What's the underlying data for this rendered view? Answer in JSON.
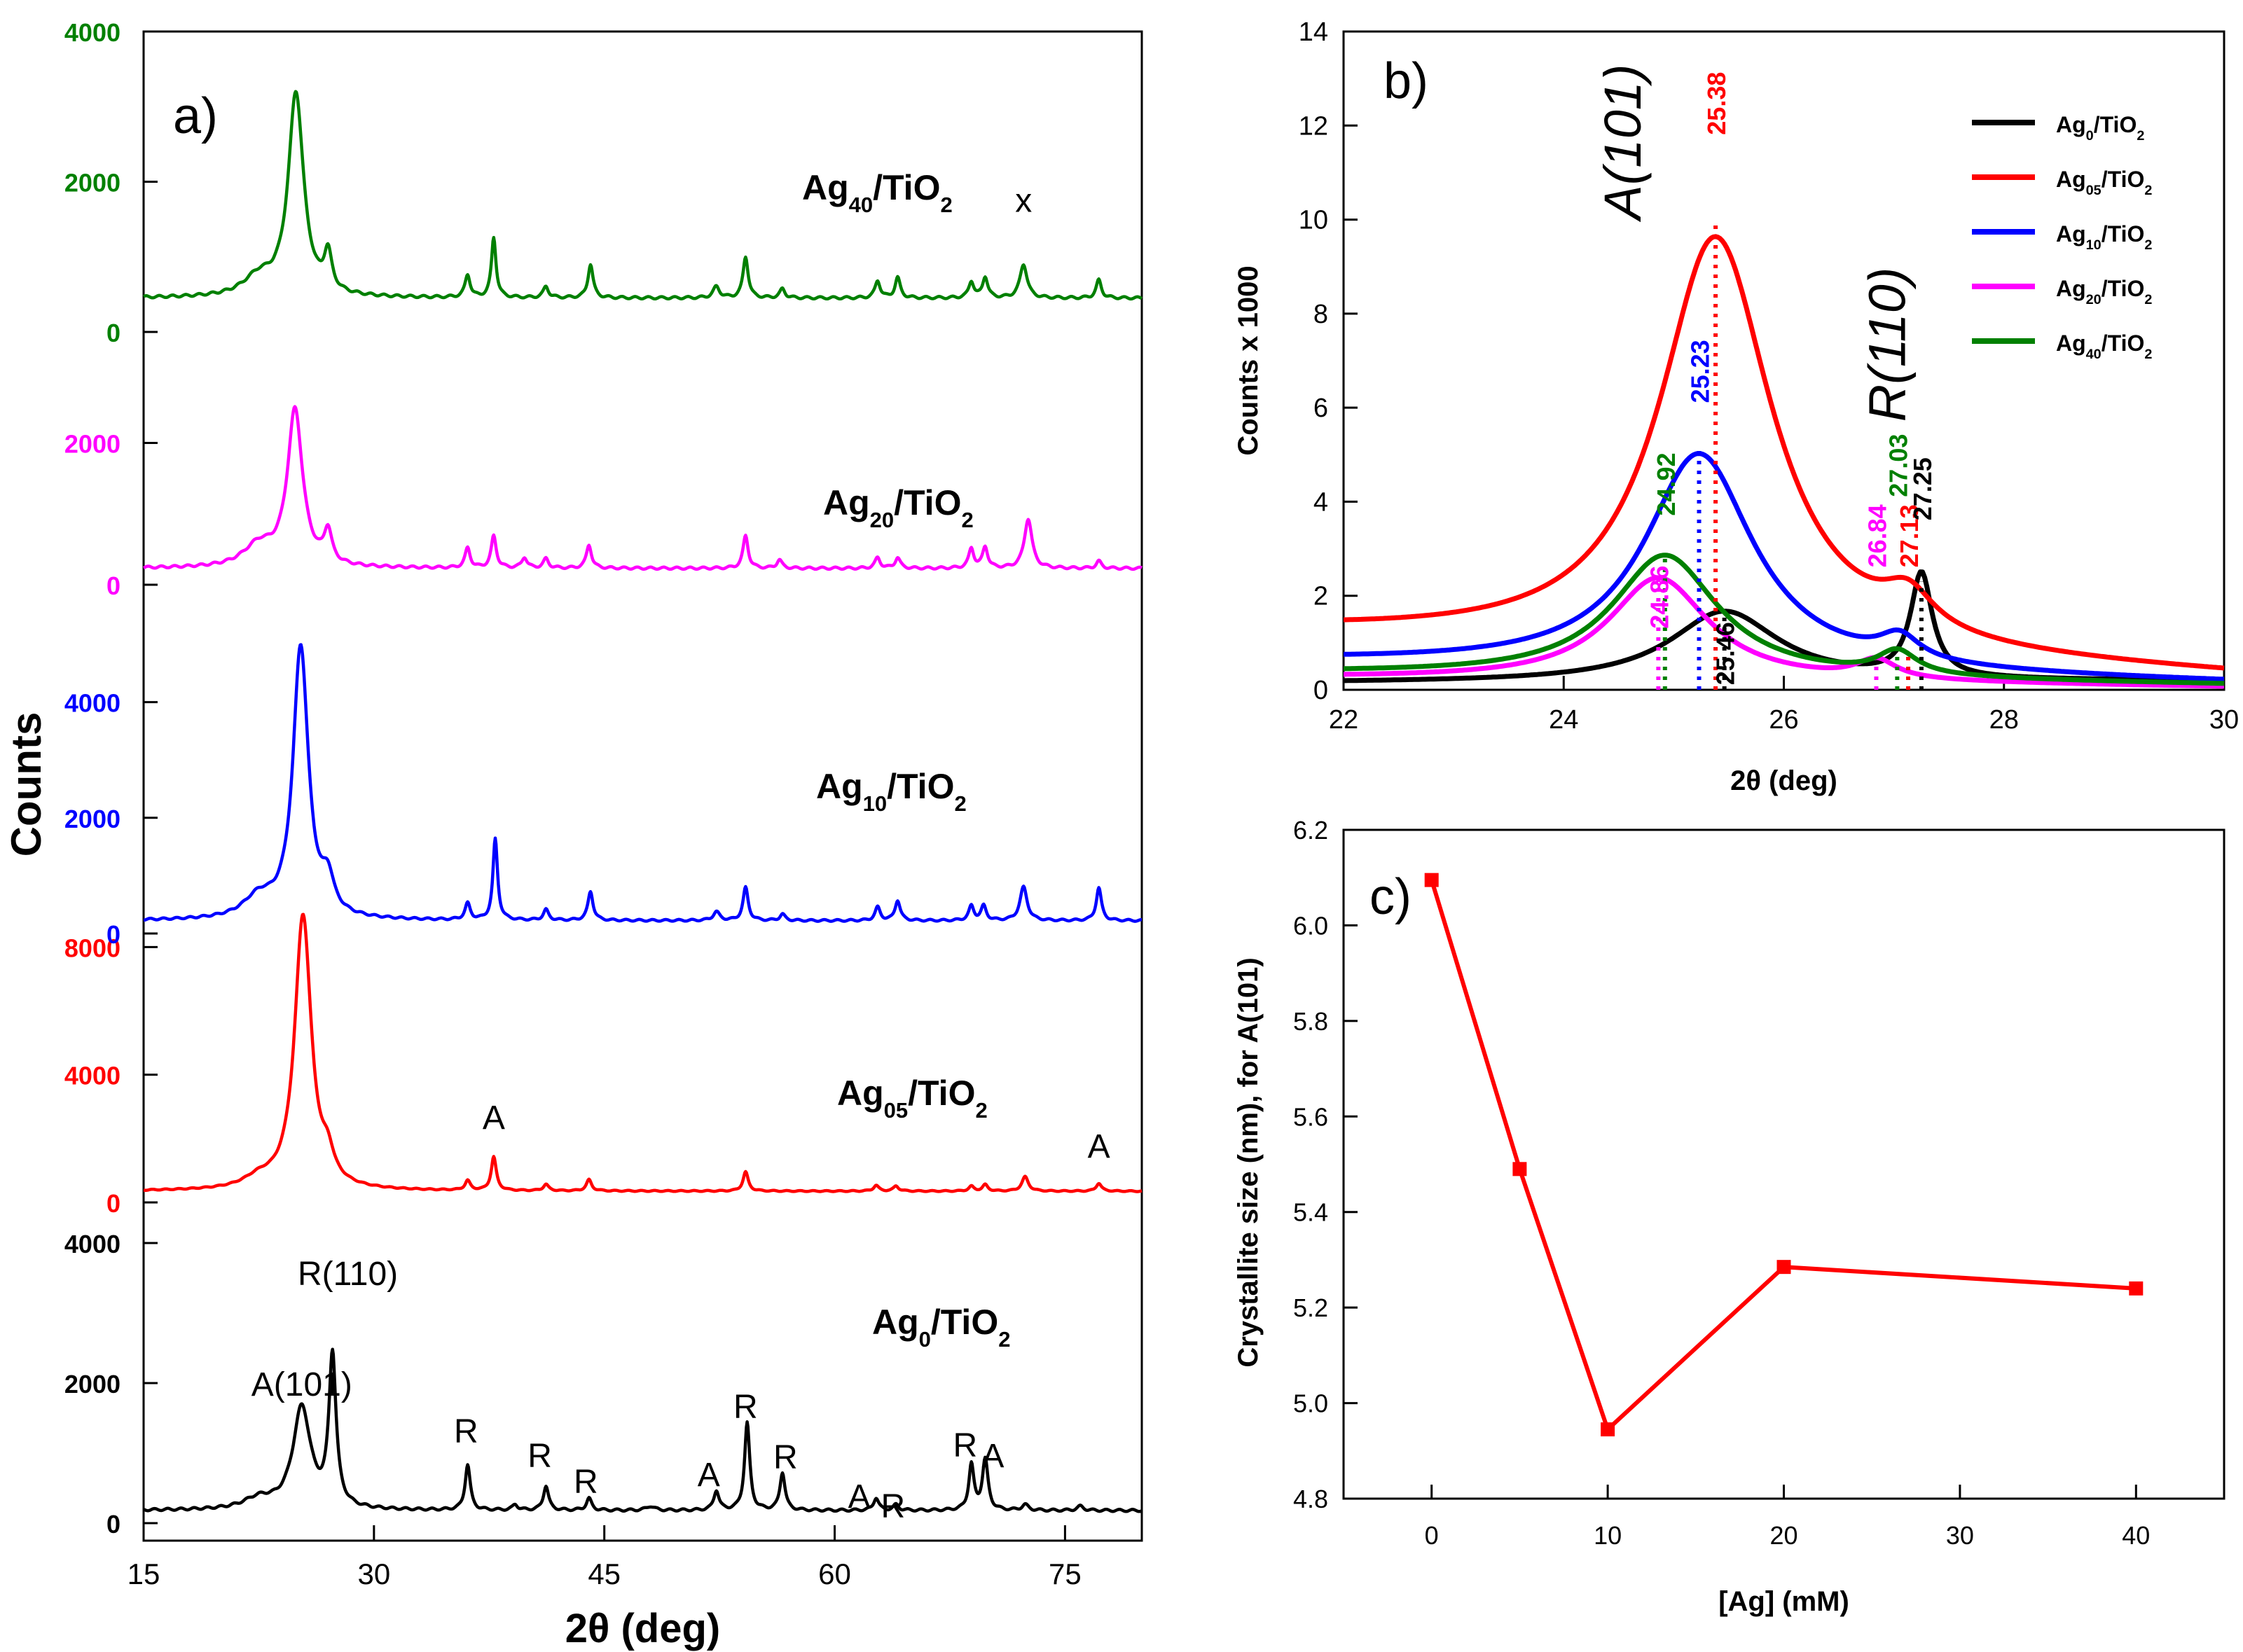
{
  "chart_data": [
    {
      "id": "a",
      "type": "line",
      "panel_label": "a)",
      "xlabel": "2θ (deg)",
      "ylabel": "Counts",
      "xlim": [
        15,
        80
      ],
      "xticks": [
        15,
        30,
        45,
        60,
        75
      ],
      "series": [
        {
          "name": "Ag0/TiO2",
          "label_main": "Ag",
          "label_sub": "0",
          "label_tail": "/TiO",
          "label_sub2": "2",
          "color": "#000000",
          "ylim": [
            0,
            4200
          ],
          "yticks": [
            0,
            2000,
            4000
          ],
          "ytick_labels": [
            "0",
            "2000",
            "4000"
          ],
          "baseline": 180,
          "peaks": [
            [
              22.5,
              150,
              1.2
            ],
            [
              25.3,
              1450,
              0.7
            ],
            [
              27.3,
              2150,
              0.28
            ],
            [
              36.1,
              650,
              0.2
            ],
            [
              39.2,
              80,
              0.2
            ],
            [
              41.2,
              350,
              0.2
            ],
            [
              44.0,
              170,
              0.2
            ],
            [
              48.0,
              60,
              0.3
            ],
            [
              52.3,
              280,
              0.2
            ],
            [
              54.3,
              1250,
              0.2
            ],
            [
              56.6,
              540,
              0.2
            ],
            [
              62.7,
              180,
              0.2
            ],
            [
              64.0,
              80,
              0.2
            ],
            [
              68.9,
              650,
              0.2
            ],
            [
              69.8,
              720,
              0.22
            ],
            [
              72.4,
              80,
              0.25
            ],
            [
              76.0,
              60,
              0.25
            ]
          ],
          "annotations": [
            {
              "text": "A(101)",
              "x": 25.3,
              "y": 1820
            },
            {
              "text": "R(110)",
              "x": 28.3,
              "y": 3400
            },
            {
              "text": "R",
              "x": 36.0,
              "y": 1150
            },
            {
              "text": "R",
              "x": 40.8,
              "y": 800
            },
            {
              "text": "R",
              "x": 43.8,
              "y": 430
            },
            {
              "text": "A",
              "x": 51.8,
              "y": 530
            },
            {
              "text": "R",
              "x": 54.2,
              "y": 1500
            },
            {
              "text": "R",
              "x": 56.8,
              "y": 780
            },
            {
              "text": "A",
              "x": 61.6,
              "y": 220
            },
            {
              "text": "R",
              "x": 63.8,
              "y": 80
            },
            {
              "text": "R",
              "x": 68.5,
              "y": 950
            },
            {
              "text": "A",
              "x": 70.3,
              "y": 800
            }
          ]
        },
        {
          "name": "Ag05/TiO2",
          "label_main": "Ag",
          "label_sub": "05",
          "label_tail": "/TiO",
          "label_sub2": "2",
          "color": "#ff0000",
          "ylim": [
            0,
            8600
          ],
          "yticks": [
            0,
            4000,
            8000
          ],
          "ytick_labels": [
            "0",
            "4000",
            "8000"
          ],
          "baseline": 350,
          "peaks": [
            [
              22.5,
              300,
              1.2
            ],
            [
              25.38,
              8600,
              0.65
            ],
            [
              27.0,
              700,
              0.45
            ],
            [
              36.1,
              300,
              0.2
            ],
            [
              37.8,
              1050,
              0.2
            ],
            [
              41.2,
              200,
              0.2
            ],
            [
              44.0,
              350,
              0.2
            ],
            [
              54.2,
              600,
              0.2
            ],
            [
              62.7,
              180,
              0.2
            ],
            [
              64.0,
              160,
              0.2
            ],
            [
              68.9,
              150,
              0.2
            ],
            [
              69.8,
              200,
              0.2
            ],
            [
              72.4,
              450,
              0.25
            ],
            [
              77.2,
              250,
              0.2
            ]
          ],
          "annotations": [
            {
              "text": "A",
              "x": 37.8,
              "y": 2300
            },
            {
              "text": "A",
              "x": 77.2,
              "y": 1400
            }
          ]
        },
        {
          "name": "Ag10/TiO2",
          "label_main": "Ag",
          "label_sub": "10",
          "label_tail": "/TiO",
          "label_sub2": "2",
          "color": "#0000ff",
          "ylim": [
            0,
            5000
          ],
          "yticks": [
            0,
            2000,
            4000
          ],
          "ytick_labels": [
            "0",
            "2000",
            "4000"
          ],
          "baseline": 220,
          "peaks": [
            [
              22.5,
              350,
              1.2
            ],
            [
              25.23,
              4700,
              0.6
            ],
            [
              27.0,
              550,
              0.45
            ],
            [
              36.1,
              280,
              0.2
            ],
            [
              37.9,
              1400,
              0.18
            ],
            [
              41.2,
              180,
              0.2
            ],
            [
              44.1,
              500,
              0.2
            ],
            [
              52.3,
              150,
              0.25
            ],
            [
              54.2,
              570,
              0.2
            ],
            [
              56.6,
              110,
              0.2
            ],
            [
              62.8,
              230,
              0.2
            ],
            [
              64.1,
              350,
              0.2
            ],
            [
              68.9,
              250,
              0.2
            ],
            [
              69.7,
              250,
              0.2
            ],
            [
              72.3,
              580,
              0.28
            ],
            [
              77.2,
              570,
              0.2
            ]
          ],
          "annotations": []
        },
        {
          "name": "Ag20/TiO2",
          "label_main": "Ag",
          "label_sub": "20",
          "label_tail": "/TiO",
          "label_sub2": "2",
          "color": "#ff00ff",
          "ylim": [
            0,
            4000
          ],
          "yticks": [
            0,
            2000
          ],
          "ytick_labels": [
            "0",
            "2000"
          ],
          "baseline": 230,
          "peaks": [
            [
              22.5,
              300,
              1.2
            ],
            [
              24.86,
              2200,
              0.6
            ],
            [
              27.0,
              450,
              0.3
            ],
            [
              36.1,
              280,
              0.2
            ],
            [
              37.8,
              450,
              0.2
            ],
            [
              39.8,
              150,
              0.2
            ],
            [
              41.2,
              130,
              0.2
            ],
            [
              44.0,
              330,
              0.2
            ],
            [
              54.2,
              460,
              0.2
            ],
            [
              56.4,
              120,
              0.2
            ],
            [
              62.8,
              150,
              0.2
            ],
            [
              64.1,
              150,
              0.2
            ],
            [
              68.9,
              280,
              0.2
            ],
            [
              69.8,
              300,
              0.2
            ],
            [
              72.6,
              700,
              0.3
            ],
            [
              77.2,
              100,
              0.2
            ]
          ],
          "annotations": []
        },
        {
          "name": "Ag40/TiO2",
          "label_main": "Ag",
          "label_sub": "40",
          "label_tail": "/TiO",
          "label_sub2": "2",
          "color": "#008000",
          "ylim": [
            0,
            4000
          ],
          "yticks": [
            0,
            2000,
            4000
          ],
          "ytick_labels": [
            "0",
            "2000",
            "4000"
          ],
          "baseline": 450,
          "peaks": [
            [
              22.5,
              250,
              1.2
            ],
            [
              24.92,
              2700,
              0.6
            ],
            [
              27.0,
              500,
              0.3
            ],
            [
              36.1,
              300,
              0.2
            ],
            [
              37.8,
              800,
              0.18
            ],
            [
              41.2,
              150,
              0.2
            ],
            [
              44.1,
              450,
              0.2
            ],
            [
              52.3,
              150,
              0.25
            ],
            [
              54.2,
              550,
              0.2
            ],
            [
              56.6,
              120,
              0.2
            ],
            [
              62.8,
              230,
              0.2
            ],
            [
              64.1,
              270,
              0.2
            ],
            [
              68.9,
              220,
              0.2
            ],
            [
              69.8,
              280,
              0.2
            ],
            [
              72.3,
              450,
              0.28
            ],
            [
              77.2,
              240,
              0.2
            ]
          ],
          "annotations": [
            {
              "text": "x",
              "x": 72.3,
              "y": 1600
            }
          ]
        }
      ]
    },
    {
      "id": "b",
      "type": "line",
      "panel_label": "b)",
      "xlabel": "2θ (deg)",
      "ylabel": "Counts x 1000",
      "xlim": [
        22,
        30
      ],
      "ylim": [
        0,
        14
      ],
      "xticks": [
        22,
        24,
        26,
        28,
        30
      ],
      "yticks": [
        0,
        2,
        4,
        6,
        8,
        10,
        12,
        14
      ],
      "legend_position": "top-right",
      "series": [
        {
          "name": "Ag0/TiO2",
          "label_main": "Ag",
          "label_sub": "0",
          "label_tail": "/TiO",
          "label_sub2": "2",
          "color": "#000000",
          "baseline": 0.15,
          "tail": 0.18,
          "peaks": [
            [
              25.46,
              1.5,
              0.6
            ],
            [
              27.25,
              2.2,
              0.12
            ]
          ]
        },
        {
          "name": "Ag05/TiO2",
          "label_main": "Ag",
          "label_sub": "05",
          "label_tail": "/TiO",
          "label_sub2": "2",
          "color": "#ff0000",
          "baseline": 1.2,
          "tail": 0.3,
          "peaks": [
            [
              25.38,
              8.8,
              0.62
            ],
            [
              27.13,
              0.75,
              0.28
            ]
          ]
        },
        {
          "name": "Ag10/TiO2",
          "label_main": "Ag",
          "label_sub": "10",
          "label_tail": "/TiO",
          "label_sub2": "2",
          "color": "#0000ff",
          "baseline": 0.6,
          "tail": 0.15,
          "peaks": [
            [
              25.23,
              4.6,
              0.6
            ],
            [
              27.05,
              0.5,
              0.22
            ]
          ]
        },
        {
          "name": "Ag20/TiO2",
          "label_main": "Ag",
          "label_sub": "20",
          "label_tail": "/TiO",
          "label_sub2": "2",
          "color": "#ff00ff",
          "baseline": 0.25,
          "tail": 0.05,
          "peaks": [
            [
              24.86,
              2.2,
              0.55
            ],
            [
              26.84,
              0.4,
              0.22
            ]
          ]
        },
        {
          "name": "Ag40/TiO2",
          "label_main": "Ag",
          "label_sub": "40",
          "label_tail": "/TiO",
          "label_sub2": "2",
          "color": "#008000",
          "baseline": 0.35,
          "tail": 0.1,
          "peaks": [
            [
              24.92,
              2.6,
              0.58
            ],
            [
              27.03,
              0.5,
              0.22
            ]
          ]
        }
      ],
      "markers": [
        {
          "x": 25.38,
          "top": 10.0,
          "label": "25.38",
          "color": "#ff0000",
          "label_y": 11.8
        },
        {
          "x": 25.23,
          "top": 5.1,
          "label": "25.23",
          "color": "#0000ff",
          "label_y": 6.1
        },
        {
          "x": 24.92,
          "top": 2.9,
          "label": "24.92",
          "color": "#008000",
          "label_y": 3.7
        },
        {
          "x": 24.86,
          "top": 2.4,
          "label": "24.86",
          "color": "#ff00ff",
          "label_y": 1.3
        },
        {
          "x": 25.46,
          "top": 1.6,
          "label": "25.46",
          "color": "#000000",
          "label_y": 0.1
        },
        {
          "x": 26.84,
          "top": 0.6,
          "label": "26.84",
          "color": "#ff00ff",
          "label_y": 2.6
        },
        {
          "x": 27.03,
          "top": 0.8,
          "label": "27.03",
          "color": "#008000",
          "label_y": 4.1
        },
        {
          "x": 27.13,
          "top": 0.8,
          "label": "27.13",
          "color": "#ff0000",
          "label_y": 2.6
        },
        {
          "x": 27.25,
          "top": 2.3,
          "label": "27.25",
          "color": "#000000",
          "label_y": 3.6
        }
      ],
      "annotations": [
        {
          "text": "A(101)",
          "x": 24.7,
          "y": 10.0
        },
        {
          "text": "R(110)",
          "x": 27.1,
          "y": 5.7
        }
      ]
    },
    {
      "id": "c",
      "type": "line",
      "panel_label": "c)",
      "xlabel": "[Ag] (mM)",
      "ylabel": "Crystallite size (nm), for A(101)",
      "xlim": [
        -5,
        45
      ],
      "ylim": [
        4.8,
        6.2
      ],
      "xticks": [
        0,
        10,
        20,
        30,
        40
      ],
      "yticks": [
        4.8,
        5.0,
        5.2,
        5.4,
        5.6,
        5.8,
        6.0,
        6.2
      ],
      "color": "#ff0000",
      "x": [
        0,
        5,
        10,
        20,
        40
      ],
      "y": [
        6.095,
        5.49,
        4.945,
        5.285,
        5.24
      ]
    }
  ]
}
